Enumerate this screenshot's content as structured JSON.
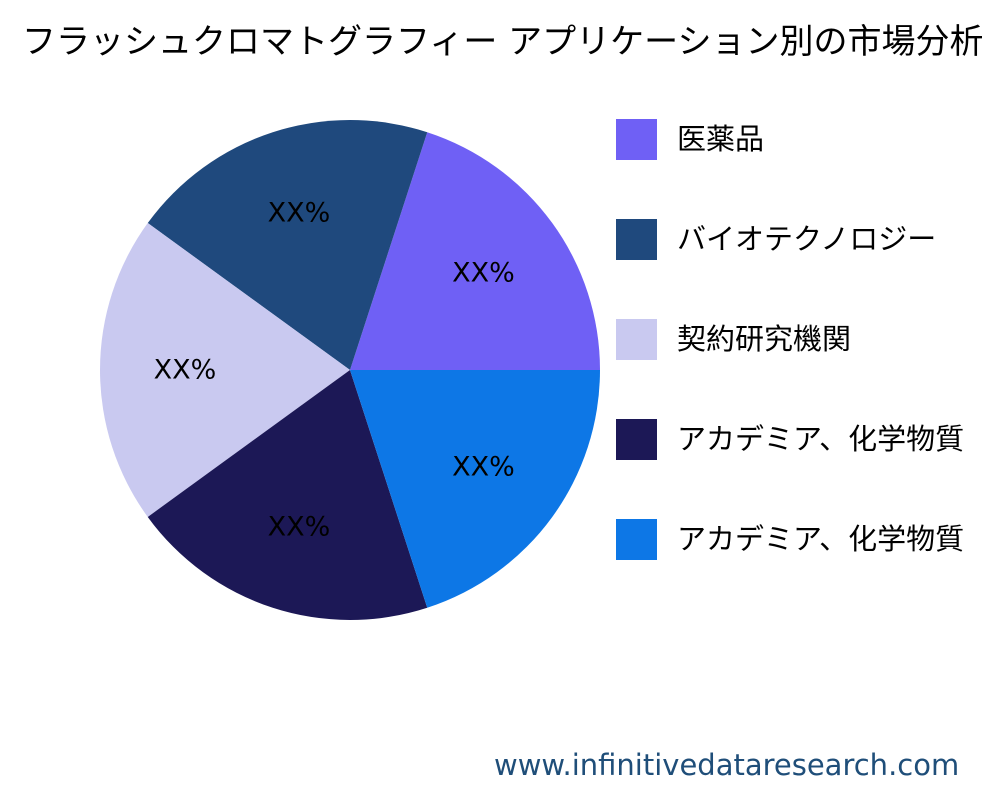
{
  "chart_data": {
    "type": "pie",
    "title": "フラッシュクロマトグラフィー アプリケーション別の市場分析",
    "categories": [
      "医薬品",
      "バイオテクノロジー",
      "契約研究機関",
      "アカデミア、化学物質",
      "アカデミア、化学物質"
    ],
    "values": [
      20,
      20,
      20,
      20,
      20
    ],
    "data_labels": [
      "XX%",
      "XX%",
      "XX%",
      "XX%",
      "XX%"
    ],
    "colors": [
      "#6f60f5",
      "#1f497d",
      "#c9c9f0",
      "#1c1856",
      "#0d77e6"
    ],
    "legend_position": "right"
  },
  "source": "www.infinitivedataresearch.com"
}
